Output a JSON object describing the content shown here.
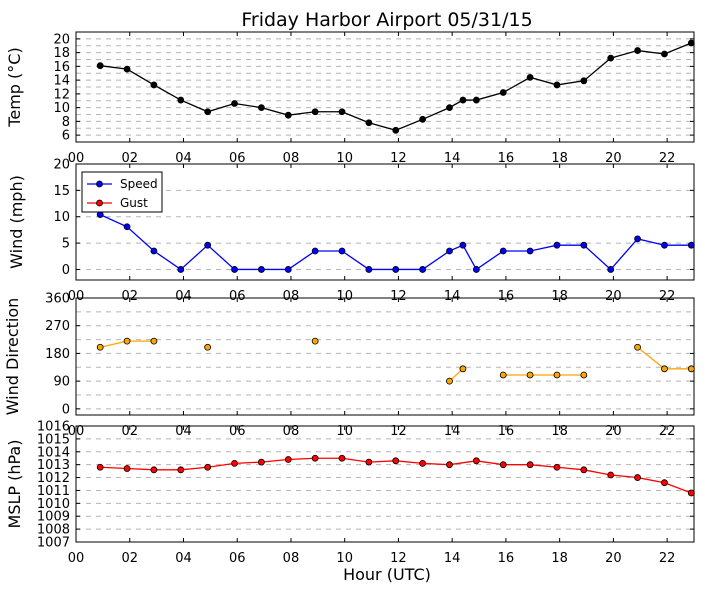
{
  "chart_data": {
    "title": "Friday Harbor Airport 05/31/15",
    "xlabel": "Hour (UTC)",
    "x_tick_labels": [
      "00",
      "02",
      "04",
      "06",
      "08",
      "10",
      "12",
      "14",
      "16",
      "18",
      "20",
      "22"
    ],
    "x_ticks": [
      0,
      2,
      4,
      6,
      8,
      10,
      12,
      14,
      16,
      18,
      20,
      22
    ],
    "xlim": [
      0,
      23
    ],
    "panels": [
      {
        "type": "line",
        "ylabel": "Temp (°C)",
        "ylim": [
          5,
          21
        ],
        "y_ticks": [
          6,
          8,
          10,
          12,
          14,
          16,
          18,
          20
        ],
        "grid_y": [
          6,
          7,
          8,
          9,
          10,
          11,
          12,
          13,
          14,
          15,
          16,
          17,
          18,
          19,
          20,
          21
        ],
        "series": [
          {
            "color": "#000000",
            "x": [
              0.9,
              1.9,
              2.9,
              3.9,
              4.9,
              5.9,
              6.9,
              7.9,
              8.9,
              9.9,
              10.9,
              11.9,
              12.9,
              13.9,
              14.4,
              14.9,
              15.9,
              16.9,
              17.9,
              18.9,
              19.9,
              20.9,
              21.9,
              22.9
            ],
            "y": [
              16.1,
              15.6,
              13.3,
              11.1,
              9.4,
              10.6,
              10.0,
              8.9,
              9.4,
              9.4,
              7.8,
              6.7,
              8.3,
              10.0,
              11.1,
              11.1,
              12.2,
              14.4,
              13.3,
              13.9,
              17.2,
              18.3,
              17.8,
              19.4
            ]
          }
        ]
      },
      {
        "type": "line",
        "ylabel": "Wind (mph)",
        "ylim": [
          -2,
          20
        ],
        "y_ticks": [
          0,
          5,
          10,
          15,
          20
        ],
        "grid_y": [
          0,
          5,
          10,
          15,
          20
        ],
        "legend": {
          "location": "upper-left",
          "entries": [
            "Speed",
            "Gust"
          ]
        },
        "series": [
          {
            "name": "Speed",
            "color": "#0000ff",
            "x": [
              0.9,
              1.9,
              2.9,
              3.9,
              4.9,
              5.9,
              6.9,
              7.9,
              8.9,
              9.9,
              10.9,
              11.9,
              12.9,
              13.9,
              14.4,
              14.9,
              15.9,
              16.9,
              17.9,
              18.9,
              19.9,
              20.9,
              21.9,
              22.9
            ],
            "y": [
              10.4,
              8.1,
              3.5,
              0,
              4.6,
              0,
              0,
              0,
              3.5,
              3.5,
              0,
              0,
              0,
              3.5,
              4.6,
              0,
              3.5,
              3.5,
              4.6,
              4.6,
              0,
              5.8,
              4.6,
              4.6
            ]
          },
          {
            "name": "Gust",
            "color": "#ff0000",
            "x": [],
            "y": []
          }
        ]
      },
      {
        "type": "line",
        "ylabel": "Wind Direction",
        "ylim": [
          -20,
          360
        ],
        "y_ticks": [
          0,
          90,
          180,
          270,
          360
        ],
        "grid_y": [
          0,
          45,
          90,
          135,
          180,
          225,
          270,
          315,
          360
        ],
        "series": [
          {
            "color": "#ffa500",
            "segments": [
              {
                "x": [
                  0.9,
                  1.9,
                  2.9
                ],
                "y": [
                  200,
                  220,
                  220
                ]
              },
              {
                "x": [
                  4.9
                ],
                "y": [
                  200
                ]
              },
              {
                "x": [
                  8.9
                ],
                "y": [
                  220
                ]
              },
              {
                "x": [
                  13.9,
                  14.4
                ],
                "y": [
                  90,
                  130
                ]
              },
              {
                "x": [
                  15.9,
                  16.9,
                  17.9,
                  18.9
                ],
                "y": [
                  110,
                  110,
                  110,
                  110
                ]
              },
              {
                "x": [
                  20.9,
                  21.9,
                  22.9
                ],
                "y": [
                  200,
                  130,
                  130
                ]
              }
            ]
          }
        ]
      },
      {
        "type": "line",
        "ylabel": "MSLP (hPa)",
        "ylim": [
          1007,
          1016
        ],
        "y_ticks": [
          1007,
          1008,
          1009,
          1010,
          1011,
          1012,
          1013,
          1014,
          1015,
          1016
        ],
        "grid_y": [
          1007,
          1008,
          1009,
          1010,
          1011,
          1012,
          1013,
          1014,
          1015,
          1016
        ],
        "series": [
          {
            "color": "#ff0000",
            "x": [
              0.9,
              1.9,
              2.9,
              3.9,
              4.9,
              5.9,
              6.9,
              7.9,
              8.9,
              9.9,
              10.9,
              11.9,
              12.9,
              13.9,
              14.9,
              15.9,
              16.9,
              17.9,
              18.9,
              19.9,
              20.9,
              21.9,
              22.9
            ],
            "y": [
              1012.8,
              1012.7,
              1012.6,
              1012.6,
              1012.8,
              1013.1,
              1013.2,
              1013.4,
              1013.5,
              1013.5,
              1013.2,
              1013.3,
              1013.1,
              1013.0,
              1013.3,
              1013.0,
              1013.0,
              1012.8,
              1012.6,
              1012.2,
              1012.0,
              1011.6,
              1010.8
            ]
          }
        ]
      }
    ]
  }
}
